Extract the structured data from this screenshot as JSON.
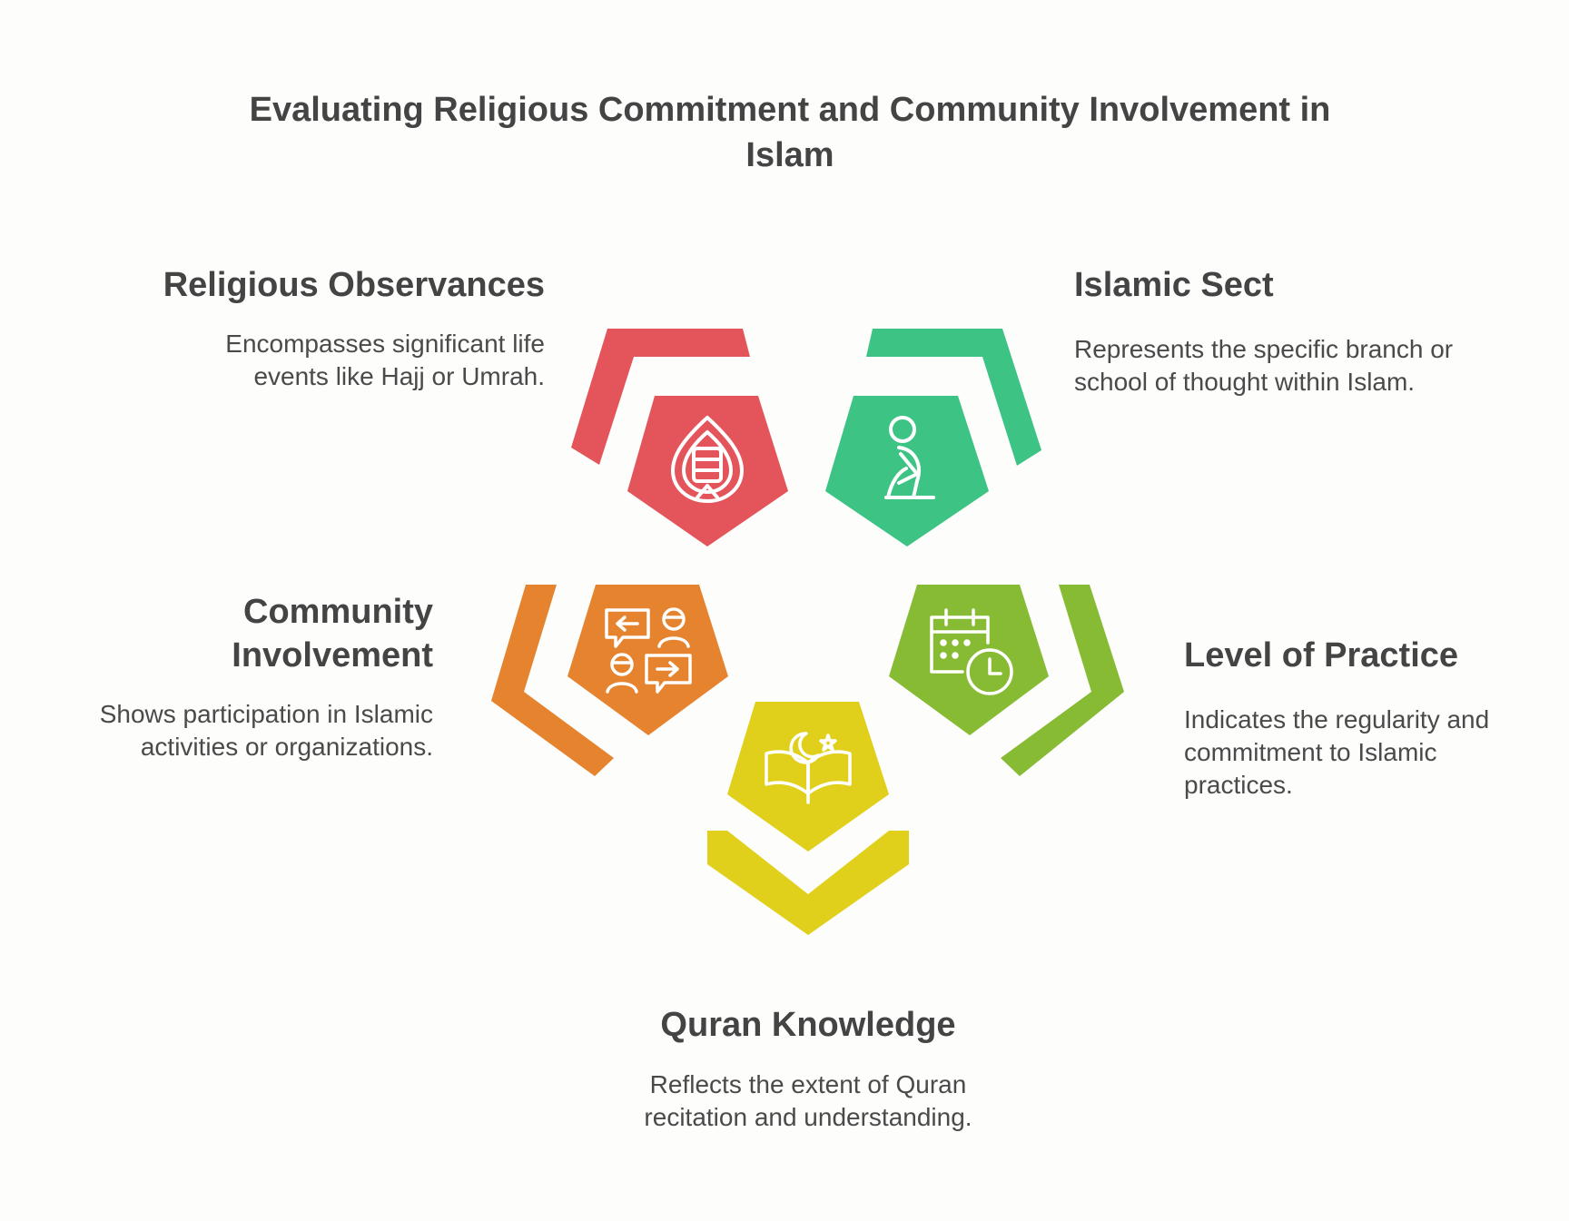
{
  "title": "Evaluating Religious Commitment and Community Involvement in Islam",
  "colors": {
    "red": "#e4555b",
    "green": "#3dc485",
    "orange": "#e5832e",
    "lime": "#88bb34",
    "yellow": "#e0d01c",
    "background": "#fdfdfc"
  },
  "items": [
    {
      "heading": "Religious Observances",
      "description": "Encompasses significant life events like Hajj or Umrah.",
      "icon": "hajj-icon",
      "color": "red"
    },
    {
      "heading": "Islamic Sect",
      "description": "Represents the specific branch or school of thought within Islam.",
      "icon": "prayer-icon",
      "color": "green"
    },
    {
      "heading": "Community Involvement",
      "description": "Shows participation in Islamic activities or organizations.",
      "icon": "conversation-icon",
      "color": "orange"
    },
    {
      "heading": "Level of Practice",
      "description": "Indicates the regularity and commitment to Islamic practices.",
      "icon": "calendar-clock-icon",
      "color": "lime"
    },
    {
      "heading": "Quran Knowledge",
      "description": "Reflects the extent of Quran recitation and understanding.",
      "icon": "quran-icon",
      "color": "yellow"
    }
  ]
}
